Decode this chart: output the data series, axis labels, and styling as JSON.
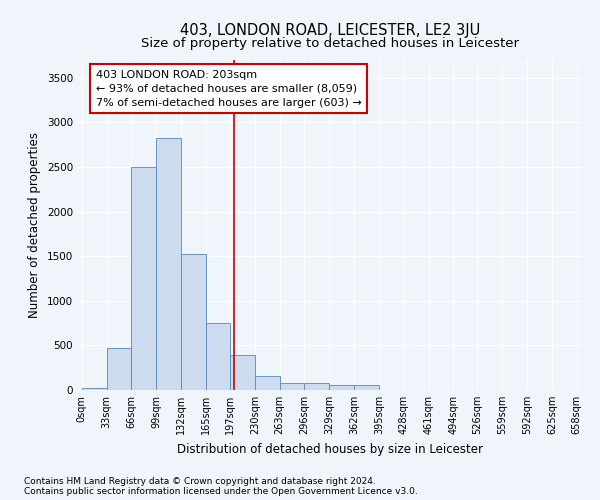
{
  "title": "403, LONDON ROAD, LEICESTER, LE2 3JU",
  "subtitle": "Size of property relative to detached houses in Leicester",
  "xlabel": "Distribution of detached houses by size in Leicester",
  "ylabel": "Number of detached properties",
  "footnote1": "Contains HM Land Registry data © Crown copyright and database right 2024.",
  "footnote2": "Contains public sector information licensed under the Open Government Licence v3.0.",
  "annotation_line1": "403 LONDON ROAD: 203sqm",
  "annotation_line2": "← 93% of detached houses are smaller (8,059)",
  "annotation_line3": "7% of semi-detached houses are larger (603) →",
  "bar_color": "#ccdcee",
  "bar_edge_color": "#5588bb",
  "vline_color": "#cc0000",
  "vline_x": 203,
  "bin_edges": [
    0,
    33,
    66,
    99,
    132,
    165,
    197,
    230,
    263,
    296,
    329,
    362,
    395,
    428,
    461,
    494,
    526,
    559,
    592,
    625,
    658
  ],
  "bar_heights": [
    25,
    475,
    2500,
    2825,
    1520,
    750,
    390,
    155,
    80,
    80,
    55,
    55,
    0,
    0,
    0,
    0,
    0,
    0,
    0,
    0
  ],
  "tick_labels": [
    "0sqm",
    "33sqm",
    "66sqm",
    "99sqm",
    "132sqm",
    "165sqm",
    "197sqm",
    "230sqm",
    "263sqm",
    "296sqm",
    "329sqm",
    "362sqm",
    "395sqm",
    "428sqm",
    "461sqm",
    "494sqm",
    "526sqm",
    "559sqm",
    "592sqm",
    "625sqm",
    "658sqm"
  ],
  "ylim": [
    0,
    3700
  ],
  "yticks": [
    0,
    500,
    1000,
    1500,
    2000,
    2500,
    3000,
    3500
  ],
  "bg_color": "#f0f4fb",
  "grid_color": "#ffffff",
  "title_fontsize": 10.5,
  "subtitle_fontsize": 9.5,
  "axis_label_fontsize": 8.5,
  "tick_fontsize": 7,
  "annotation_fontsize": 8,
  "footnote_fontsize": 6.5
}
